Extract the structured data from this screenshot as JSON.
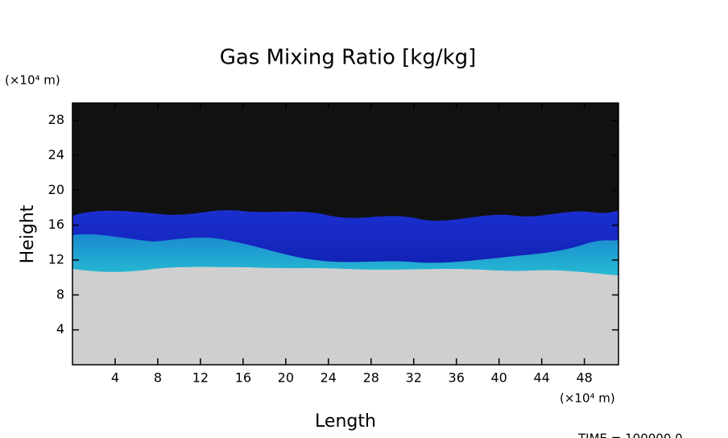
{
  "chart_data": {
    "type": "heatmap",
    "title": "Gas Mixing Ratio [kg/kg]",
    "x_label": "Length",
    "y_label": "Height",
    "x_unit": "(×10⁴ m)",
    "y_unit": "(×10⁴ m)",
    "footer": "TIME = 100000.0",
    "xlim": [
      0,
      51.2
    ],
    "ylim": [
      0,
      30
    ],
    "xticks": [
      4,
      8,
      12,
      16,
      20,
      24,
      28,
      32,
      36,
      40,
      44,
      48
    ],
    "yticks": [
      4,
      8,
      12,
      16,
      20,
      24,
      28
    ]
  }
}
